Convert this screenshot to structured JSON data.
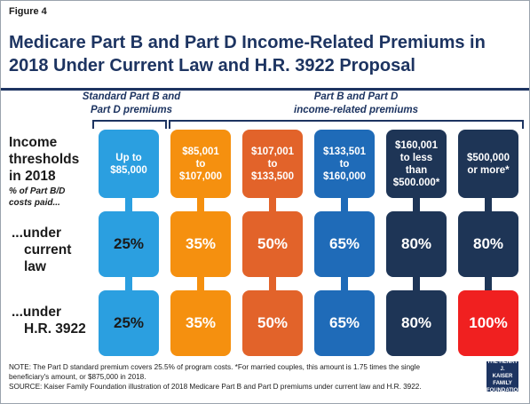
{
  "figure_label": "Figure 4",
  "title_line1": "Medicare Part B and Part D Income-Related Premiums in",
  "title_line2": "2018 Under Current Law and H.R. 3922 Proposal",
  "group_standard": [
    "Standard Part B and",
    "Part D premiums"
  ],
  "group_income": [
    "Part B and Part D",
    "income-related premiums"
  ],
  "row_labels": {
    "income": [
      "Income",
      "thresholds",
      "in 2018"
    ],
    "pct_note": [
      "% of Part B/D",
      "costs paid..."
    ],
    "current": [
      "...under",
      "current",
      "law"
    ],
    "hr": [
      "...under",
      "H.R. 3922"
    ]
  },
  "colors": {
    "navy": "#1d3461",
    "blue_std": "#2b9fe0",
    "orange": "#f5900f",
    "orange_red": "#e2632a",
    "mid_blue": "#1f6bb8",
    "dark_navy": "#1e3556",
    "red": "#f02020"
  },
  "chart_data": {
    "type": "table",
    "columns": [
      {
        "threshold": [
          "Up to",
          "$85,000"
        ],
        "color": "#2b9fe0",
        "current_law": 25,
        "hr3922": 25
      },
      {
        "threshold": [
          "$85,001",
          "to",
          "$107,000"
        ],
        "color": "#f5900f",
        "current_law": 35,
        "hr3922": 35
      },
      {
        "threshold": [
          "$107,001",
          "to",
          "$133,500"
        ],
        "color": "#e2632a",
        "current_law": 50,
        "hr3922": 50
      },
      {
        "threshold": [
          "$133,501",
          "to",
          "$160,000"
        ],
        "color": "#1f6bb8",
        "current_law": 65,
        "hr3922": 65
      },
      {
        "threshold": [
          "$160,001",
          "to less",
          "than",
          "$500.000*"
        ],
        "color": "#1e3556",
        "current_law": 80,
        "hr3922": 80
      },
      {
        "threshold": [
          "$500,000",
          "or more*"
        ],
        "color": "#1e3556",
        "hr3922_color": "#f02020",
        "current_law": 80,
        "hr3922": 100
      }
    ],
    "current_law_labels": [
      "25%",
      "35%",
      "50%",
      "65%",
      "80%",
      "80%"
    ],
    "hr3922_labels": [
      "25%",
      "35%",
      "50%",
      "65%",
      "80%",
      "100%"
    ]
  },
  "note_line1": "NOTE: The Part D standard premium covers 25.5% of program costs. *For married couples, this amount is 1.75 times the single",
  "note_line2": "beneficiary's amount, or $875,000 in 2018.",
  "note_line3": "SOURCE: Kaiser Family Foundation illustration of 2018 Medicare Part B and Part D premiums under current law and H.R. 3922.",
  "logo_text": [
    "THE HENRY J.",
    "KAISER",
    "FAMILY",
    "FOUNDATION"
  ]
}
